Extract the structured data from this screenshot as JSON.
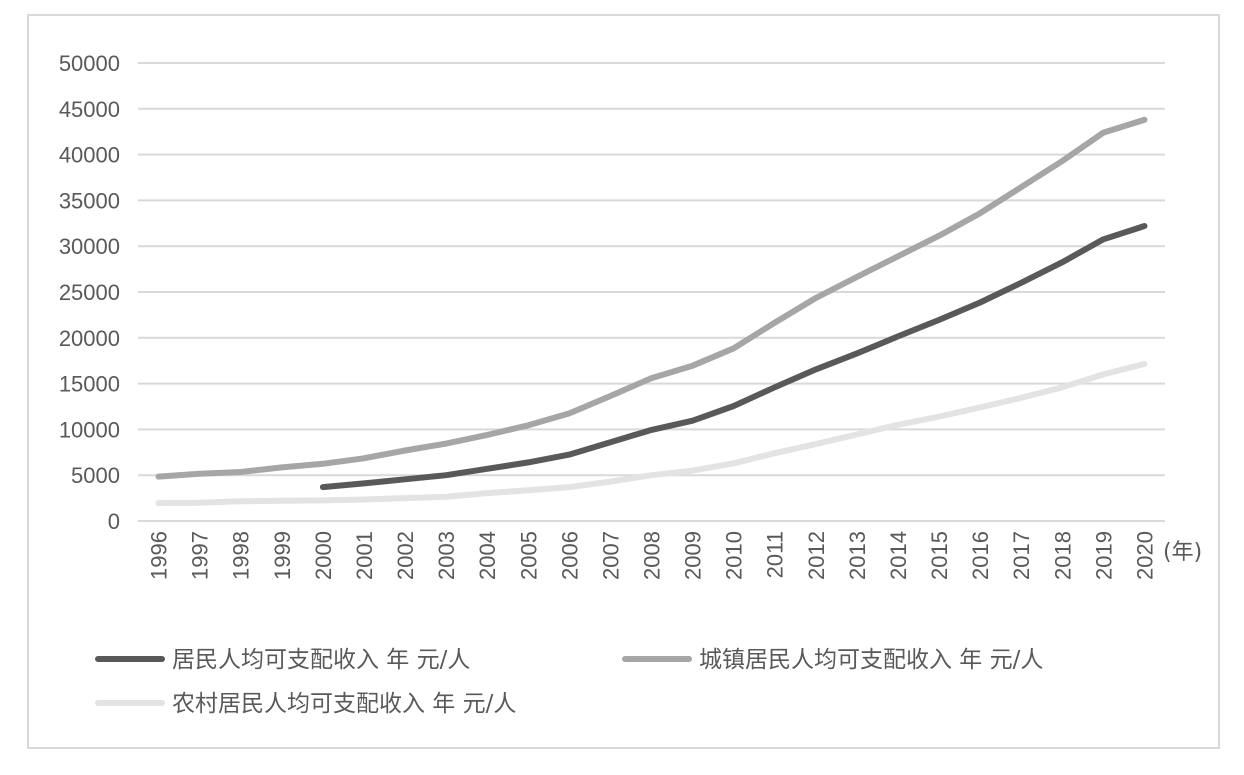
{
  "chart_data": {
    "type": "line",
    "x_unit": "(年)",
    "x": [
      "1996",
      "1997",
      "1998",
      "1999",
      "2000",
      "2001",
      "2002",
      "2003",
      "2004",
      "2005",
      "2006",
      "2007",
      "2008",
      "2009",
      "2010",
      "2011",
      "2012",
      "2013",
      "2014",
      "2015",
      "2016",
      "2017",
      "2018",
      "2019",
      "2020"
    ],
    "ylim": [
      0,
      50000
    ],
    "yticks": [
      0,
      5000,
      10000,
      15000,
      20000,
      25000,
      30000,
      35000,
      40000,
      45000,
      50000
    ],
    "grid": true,
    "legend_position": "bottom",
    "series": [
      {
        "name": "居民人均可支配收入 年 元/人",
        "color": "#595959",
        "values": [
          null,
          null,
          null,
          null,
          3700,
          4100,
          4550,
          5000,
          5700,
          6400,
          7250,
          8600,
          9950,
          10950,
          12550,
          14600,
          16550,
          18300,
          20150,
          21950,
          23850,
          26000,
          28250,
          30750,
          32200
        ]
      },
      {
        "name": "城镇居民人均可支配收入 年 元/人",
        "color": "#a6a6a6",
        "values": [
          4850,
          5150,
          5350,
          5850,
          6250,
          6850,
          7700,
          8450,
          9400,
          10450,
          11750,
          13650,
          15600,
          16950,
          18850,
          21650,
          24350,
          26650,
          28900,
          31150,
          33600,
          36450,
          39300,
          42400,
          43800
        ]
      },
      {
        "name": "农村居民人均可支配收入 年 元/人",
        "color": "#e3e3e3",
        "values": [
          1950,
          2000,
          2150,
          2200,
          2250,
          2350,
          2500,
          2650,
          3050,
          3350,
          3700,
          4300,
          5000,
          5500,
          6300,
          7400,
          8400,
          9450,
          10500,
          11400,
          12400,
          13450,
          14600,
          16000,
          17150
        ]
      }
    ]
  }
}
